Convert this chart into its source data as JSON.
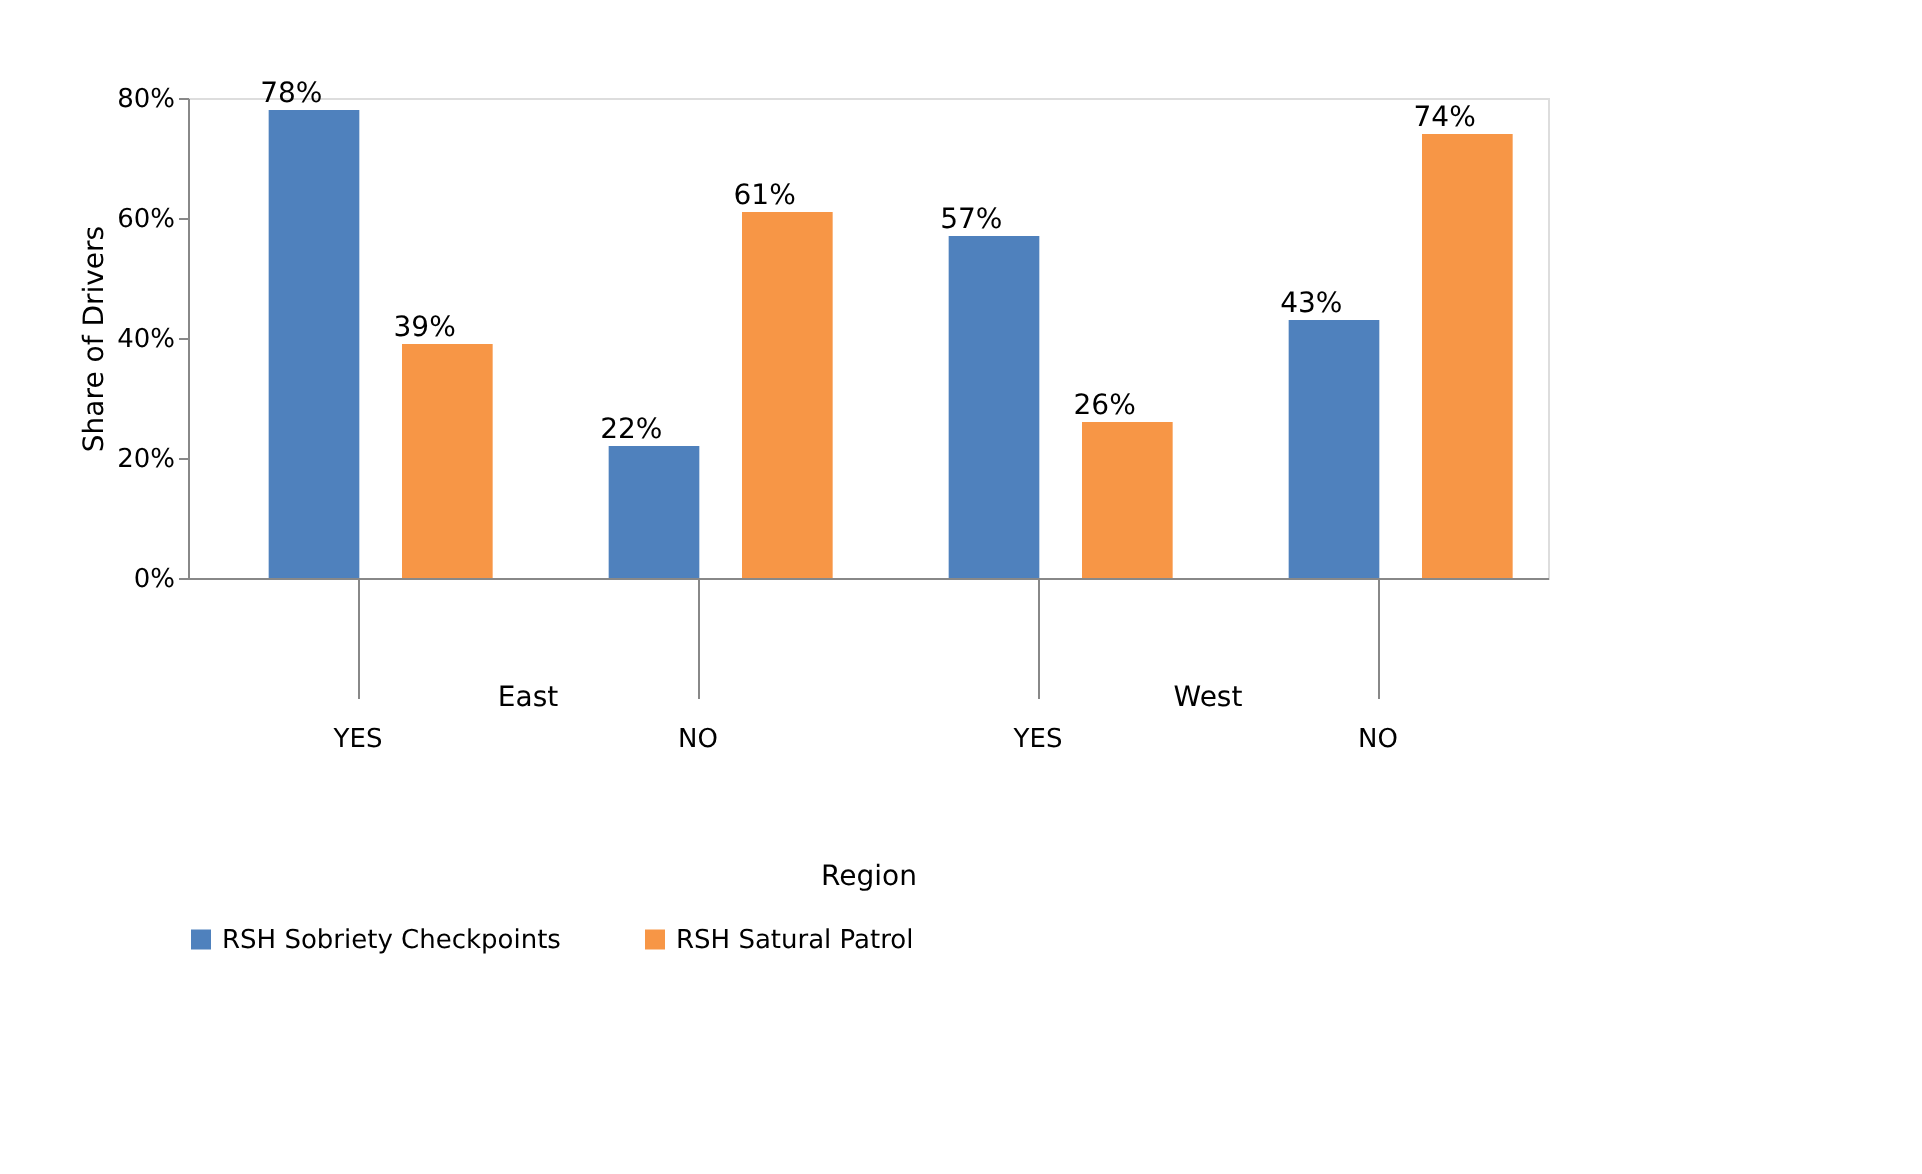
{
  "chart_data": {
    "type": "bar",
    "xlabel": "Region",
    "ylabel": "Share of Drivers",
    "categories": [
      "YES",
      "NO",
      "YES",
      "NO"
    ],
    "annotations": [
      "East",
      "West"
    ],
    "series": [
      {
        "name": "RSH Sobriety Checkpoints",
        "color": "#4f81bd",
        "values": [
          78,
          22,
          57,
          43
        ]
      },
      {
        "name": "RSH Satural Patrol",
        "color": "#f79646",
        "values": [
          39,
          61,
          26,
          74
        ]
      }
    ],
    "value_labels": [
      [
        "78%",
        "22%",
        "57%",
        "43%"
      ],
      [
        "39%",
        "61%",
        "26%",
        "74%"
      ]
    ],
    "ylim": [
      0,
      80
    ],
    "yticks": [
      {
        "value": 0,
        "label": "0%"
      },
      {
        "value": 20,
        "label": "20%"
      },
      {
        "value": 40,
        "label": "40%"
      },
      {
        "value": 60,
        "label": "60%"
      },
      {
        "value": 80,
        "label": "80%"
      }
    ],
    "grid": false,
    "legend": "bottom"
  }
}
